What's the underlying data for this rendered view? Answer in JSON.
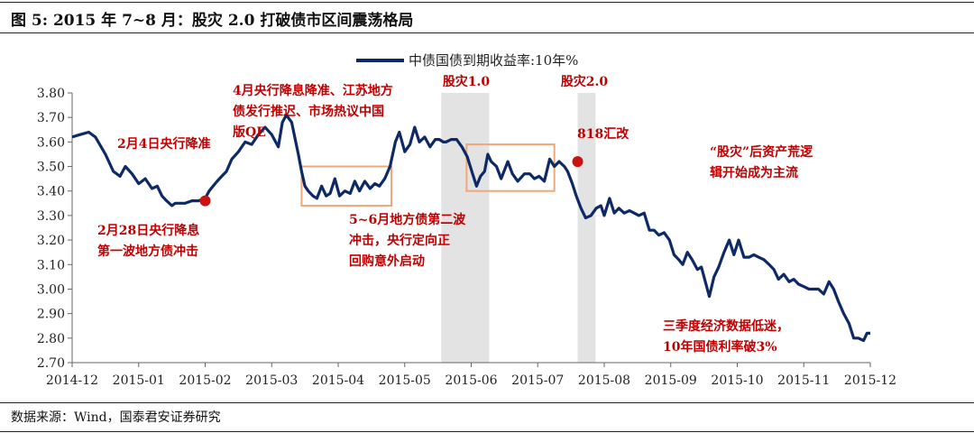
{
  "figure": {
    "title": "图 5:  2015 年 7~8 月：股灾 2.0 打破债市区间震荡格局",
    "source": "数据来源：Wind，国泰君安证券研究"
  },
  "colors": {
    "line": "#0d2a66",
    "annotation": "#c00000",
    "shade": "#e3e3e3",
    "box": "#f0a878",
    "marker": "#cc1111"
  },
  "chart_data": {
    "type": "line",
    "ylim": [
      2.7,
      3.8
    ],
    "yticks": [
      "3.80",
      "3.70",
      "3.60",
      "3.50",
      "3.40",
      "3.30",
      "3.20",
      "3.10",
      "3.00",
      "2.90",
      "2.80",
      "2.70"
    ],
    "yvalues": [
      3.8,
      3.7,
      3.6,
      3.5,
      3.4,
      3.3,
      3.2,
      3.1,
      3.0,
      2.9,
      2.8,
      2.7
    ],
    "xlim": [
      0,
      12
    ],
    "xticks": [
      "2014-12",
      "2015-01",
      "2015-02",
      "2015-03",
      "2015-04",
      "2015-05",
      "2015-06",
      "2015-07",
      "2015-08",
      "2015-09",
      "2015-10",
      "2015-11",
      "2015-12"
    ],
    "series": [
      {
        "name": "中债国债到期收益率:10年%",
        "x": [
          0,
          0.12,
          0.25,
          0.35,
          0.5,
          0.62,
          0.72,
          0.8,
          0.9,
          1.0,
          1.1,
          1.2,
          1.28,
          1.35,
          1.42,
          1.5,
          1.55,
          1.62,
          1.7,
          1.8,
          1.9,
          2.0,
          2.06,
          2.12,
          2.18,
          2.25,
          2.32,
          2.4,
          2.5,
          2.6,
          2.7,
          2.8,
          2.9,
          3.0,
          3.1,
          3.16,
          3.22,
          3.3,
          3.4,
          3.45,
          3.5,
          3.55,
          3.62,
          3.68,
          3.75,
          3.82,
          3.88,
          3.95,
          4.02,
          4.1,
          4.18,
          4.25,
          4.32,
          4.4,
          4.48,
          4.55,
          4.62,
          4.7,
          4.78,
          4.86,
          4.92,
          5.0,
          5.08,
          5.15,
          5.22,
          5.3,
          5.38,
          5.46,
          5.52,
          5.58,
          5.62,
          5.7,
          5.78,
          5.86,
          5.94,
          6.02,
          6.08,
          6.14,
          6.2,
          6.25,
          6.3,
          6.38,
          6.45,
          6.55,
          6.62,
          6.7,
          6.8,
          6.88,
          6.95,
          7.02,
          7.1,
          7.18,
          7.25,
          7.32,
          7.4,
          7.45,
          7.52,
          7.58,
          7.65,
          7.72,
          7.8,
          7.88,
          7.95,
          8.0,
          8.08,
          8.15,
          8.22,
          8.3,
          8.38,
          8.45,
          8.52,
          8.6,
          8.68,
          8.75,
          8.82,
          8.9,
          8.98,
          9.05,
          9.12,
          9.18,
          9.25,
          9.32,
          9.4,
          9.46,
          9.52,
          9.58,
          9.65,
          9.72,
          9.8,
          9.88,
          9.95,
          10.02,
          10.1,
          10.18,
          10.25,
          10.32,
          10.4,
          10.48,
          10.55,
          10.62,
          10.7,
          10.78,
          10.85,
          10.92,
          11.0,
          11.08,
          11.15,
          11.22,
          11.3,
          11.38,
          11.45,
          11.52,
          11.6,
          11.68,
          11.75,
          11.82,
          11.9,
          11.95,
          12.0
        ],
        "y": [
          3.62,
          3.63,
          3.64,
          3.62,
          3.55,
          3.48,
          3.46,
          3.5,
          3.47,
          3.43,
          3.45,
          3.41,
          3.42,
          3.38,
          3.36,
          3.34,
          3.35,
          3.35,
          3.35,
          3.36,
          3.36,
          3.37,
          3.4,
          3.42,
          3.44,
          3.46,
          3.48,
          3.53,
          3.56,
          3.6,
          3.59,
          3.63,
          3.66,
          3.63,
          3.58,
          3.68,
          3.71,
          3.68,
          3.55,
          3.48,
          3.42,
          3.4,
          3.38,
          3.37,
          3.42,
          3.38,
          3.39,
          3.45,
          3.38,
          3.4,
          3.39,
          3.44,
          3.4,
          3.44,
          3.41,
          3.43,
          3.42,
          3.45,
          3.5,
          3.6,
          3.64,
          3.56,
          3.59,
          3.66,
          3.6,
          3.62,
          3.58,
          3.61,
          3.61,
          3.6,
          3.6,
          3.61,
          3.61,
          3.58,
          3.54,
          3.47,
          3.42,
          3.46,
          3.48,
          3.55,
          3.52,
          3.5,
          3.45,
          3.52,
          3.47,
          3.44,
          3.47,
          3.47,
          3.45,
          3.46,
          3.44,
          3.53,
          3.5,
          3.52,
          3.5,
          3.48,
          3.43,
          3.38,
          3.33,
          3.29,
          3.3,
          3.33,
          3.34,
          3.3,
          3.37,
          3.31,
          3.33,
          3.31,
          3.32,
          3.31,
          3.3,
          3.31,
          3.24,
          3.24,
          3.22,
          3.23,
          3.2,
          3.14,
          3.12,
          3.1,
          3.15,
          3.12,
          3.08,
          3.09,
          3.03,
          2.97,
          3.05,
          3.09,
          3.15,
          3.2,
          3.14,
          3.2,
          3.13,
          3.13,
          3.14,
          3.13,
          3.12,
          3.1,
          3.08,
          3.04,
          3.06,
          3.03,
          3.04,
          3.02,
          3.01,
          3.0,
          3.0,
          3.0,
          2.98,
          3.03,
          3.0,
          2.95,
          2.9,
          2.86,
          2.8,
          2.8,
          2.79,
          2.82,
          2.82
        ]
      }
    ],
    "legend": {
      "label": "中债国债到期收益率:10年%",
      "position": "top-center"
    },
    "shaded_regions": [
      {
        "label": "股灾1.0",
        "x0": 5.55,
        "x1": 6.27
      },
      {
        "label": "股灾2.0",
        "x0": 7.6,
        "x1": 7.87
      }
    ],
    "boxes": [
      {
        "x0": 3.45,
        "x1": 4.8,
        "y0": 3.34,
        "y1": 3.5
      },
      {
        "x0": 5.93,
        "x1": 7.25,
        "y0": 3.4,
        "y1": 3.59
      }
    ],
    "markers": [
      {
        "x": 2.0,
        "y": 3.36
      },
      {
        "x": 7.6,
        "y": 3.52
      }
    ],
    "annotations": [
      {
        "lines": [
          "2月4日央行降准"
        ]
      },
      {
        "lines": [
          "2月28日央行降息",
          "第一波地方债冲击"
        ]
      },
      {
        "lines": [
          "4月央行降息降准、江苏地方",
          "债发行推迟、市场热议中国",
          "版QE"
        ]
      },
      {
        "lines": [
          "5~6月地方债第二波",
          "冲击，央行定向正",
          "回购意外启动"
        ]
      },
      {
        "lines": [
          "818汇改"
        ]
      },
      {
        "lines": [
          "“股灾”后资产荒逻",
          "辑开始成为主流"
        ]
      },
      {
        "lines": [
          "三季度经济数据低迷，",
          "10年国债利率破3%"
        ]
      }
    ]
  }
}
